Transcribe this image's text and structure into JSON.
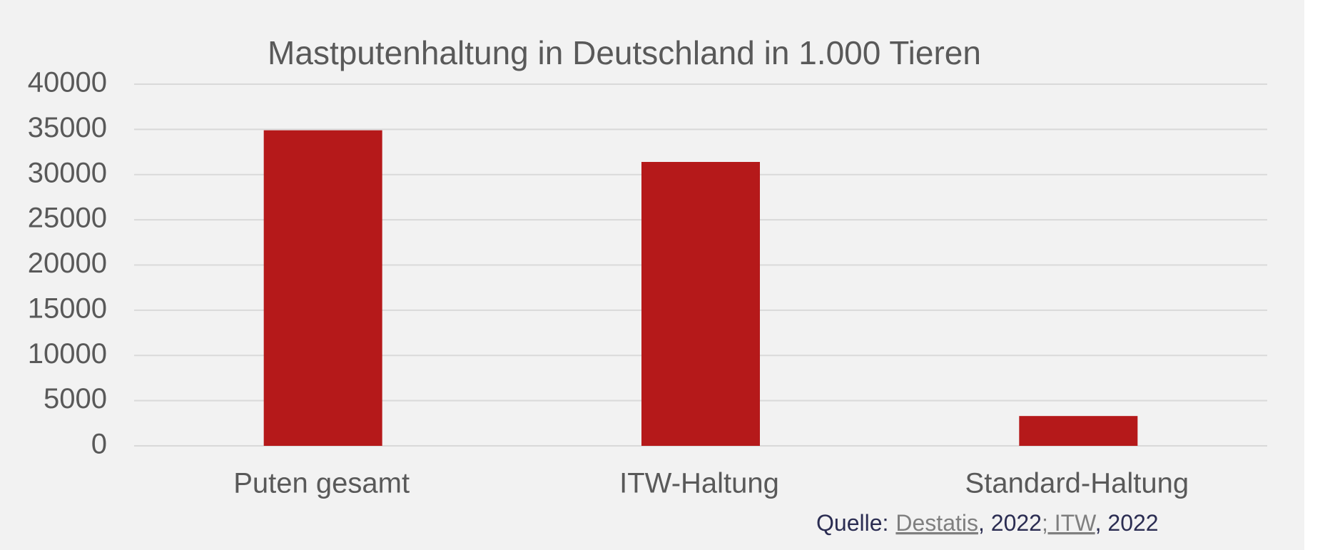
{
  "chart_data": {
    "type": "bar",
    "title": "Mastputenhaltung in Deutschland in 1.000 Tieren",
    "categories": [
      "Puten gesamt",
      "ITW-Haltung",
      "Standard-Haltung"
    ],
    "values": [
      34900,
      31400,
      3300
    ],
    "color": "#b5191a",
    "ylim": [
      0,
      40000
    ],
    "yticks": [
      0,
      5000,
      10000,
      15000,
      20000,
      25000,
      30000,
      35000,
      40000
    ],
    "grid": true
  },
  "source": {
    "label": "Quelle:",
    "link1": "Destatis",
    "year1": ", 2022",
    "link2": "; ITW",
    "year2": ", 2022"
  }
}
